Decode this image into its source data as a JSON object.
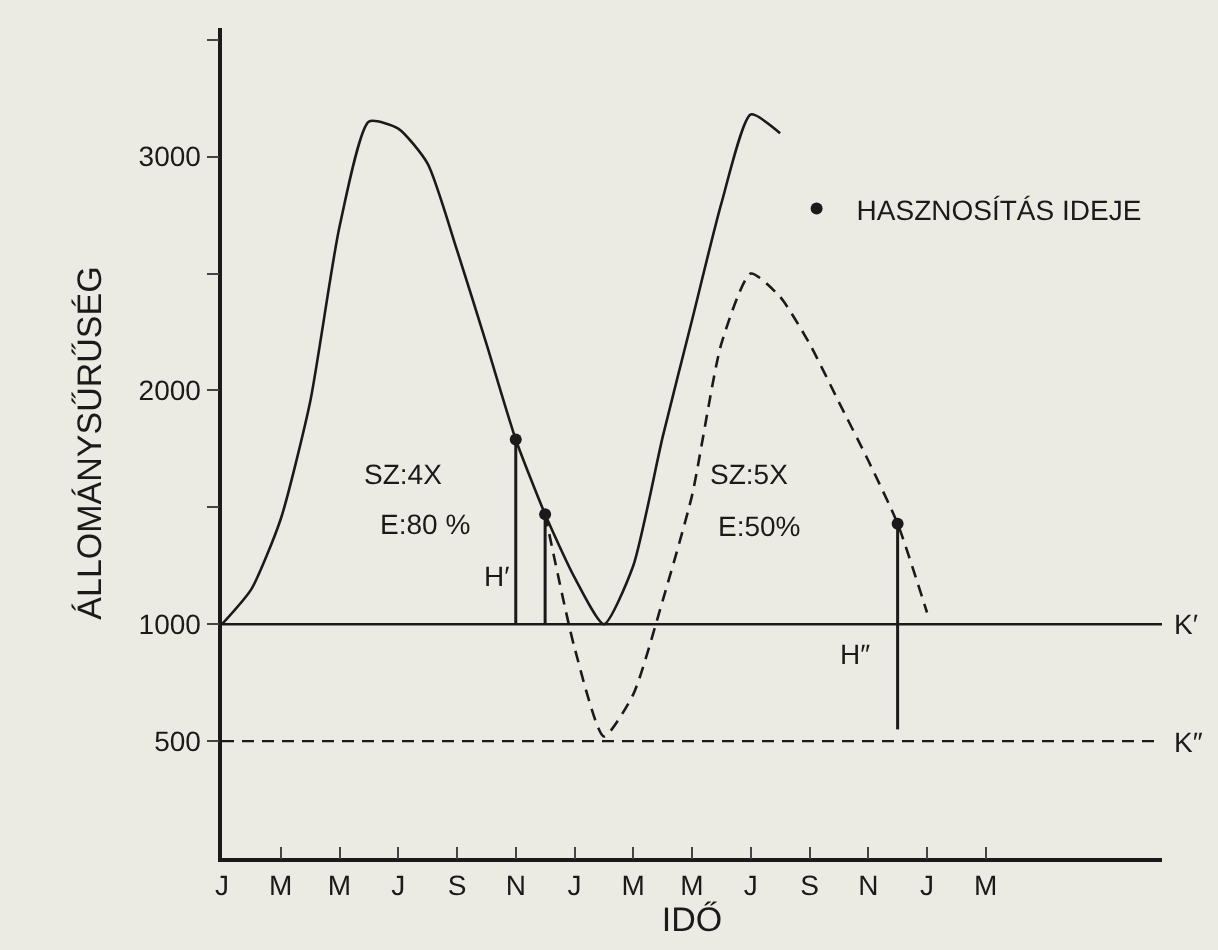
{
  "chart_data": {
    "type": "line",
    "xlabel": "IDŐ",
    "ylabel": "ÁLLOMÁNYSŰRŰSÉG",
    "categories": [
      "J",
      null,
      "M",
      null,
      "M",
      null,
      "J",
      null,
      "S",
      null,
      "N",
      null,
      "J",
      null,
      "M",
      null,
      "M",
      null,
      "J",
      null,
      "S",
      null,
      "N",
      null,
      "J",
      null,
      "M",
      null,
      null,
      null,
      null,
      null,
      null
    ],
    "ylim": [
      0,
      3550
    ],
    "yticks": [
      500,
      1000,
      {
        "value": 1500,
        "label": null
      },
      2000,
      {
        "value": 2500,
        "label": null
      },
      3000,
      {
        "value": 3500,
        "label": null
      }
    ],
    "legend": "top right",
    "series": [
      {
        "color": "#1a1a1a",
        "line_style": "solid",
        "values": [
          1000,
          1150,
          1450,
          1950,
          2700,
          3150,
          3120,
          2970,
          2600,
          2200,
          1790,
          1470,
          1200,
          1000,
          1250,
          1800,
          2300,
          2800,
          3180,
          3100,
          null,
          null,
          null,
          null,
          null,
          null,
          null,
          null,
          null,
          null,
          null,
          null,
          null
        ]
      },
      {
        "color": "#1a1a1a",
        "line_style": "dashed",
        "values": [
          null,
          null,
          null,
          null,
          null,
          null,
          null,
          null,
          null,
          null,
          null,
          1470,
          900,
          520,
          700,
          1100,
          1550,
          2200,
          2500,
          2400,
          2200,
          1950,
          1700,
          1430,
          1050,
          null,
          null,
          null,
          null,
          null,
          null,
          null,
          null
        ]
      },
      {
        "type": "scatter",
        "name": "HASZNOSÍTÁS IDEJE",
        "color": "#1a1a1a",
        "marker": "circle",
        "values": [
          null,
          null,
          null,
          null,
          null,
          null,
          null,
          null,
          null,
          null,
          1790,
          1470,
          null,
          null,
          null,
          null,
          null,
          null,
          null,
          null,
          null,
          null,
          null,
          1430,
          null,
          null,
          null,
          null,
          null,
          null,
          null,
          null,
          null
        ],
        "errors": [
          null,
          null,
          null,
          null,
          null,
          null,
          null,
          null,
          null,
          null,
          [
            1000,
            1790
          ],
          [
            1000,
            1470
          ],
          null,
          null,
          null,
          null,
          null,
          null,
          null,
          null,
          null,
          null,
          null,
          [
            550,
            1430
          ],
          null,
          null,
          null,
          null,
          null,
          null,
          null,
          null,
          null
        ]
      }
    ],
    "ref_lines": [
      {
        "axis": "y",
        "value": 1000,
        "label": "K′",
        "line_style": "solid",
        "color": "#1a1a1a"
      },
      {
        "axis": "y",
        "value": 500,
        "label": "K″",
        "line_style": "dashed",
        "color": "#1a1a1a"
      }
    ],
    "annotations": [
      "SZ:4X",
      "E:80 %",
      "H′",
      "SZ:5X",
      "E:50%",
      "H″"
    ]
  }
}
